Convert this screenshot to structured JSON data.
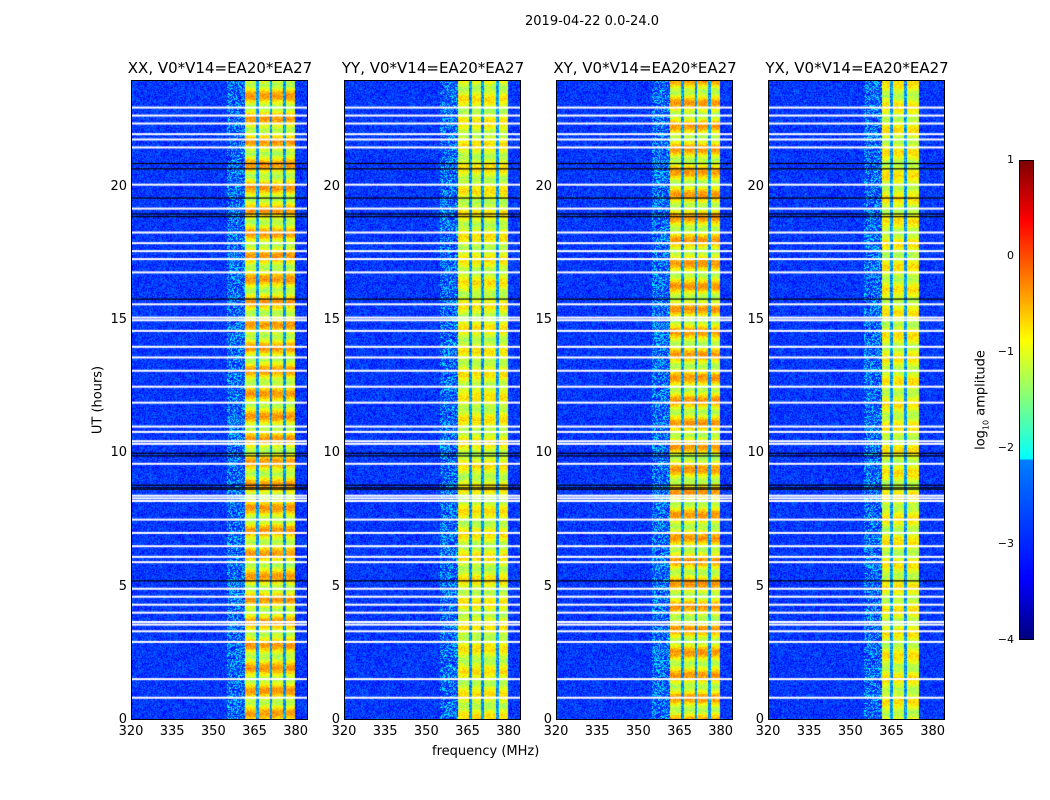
{
  "chart_data": {
    "type": "heatmap",
    "title": "2019-04-22 0.0-24.0",
    "xlabel": "frequency (MHz)",
    "ylabel": "UT (hours)",
    "xlim": [
      320,
      384.5
    ],
    "ylim": [
      0,
      24
    ],
    "xticks": [
      "320",
      "335",
      "350",
      "365",
      "380"
    ],
    "xtick_values": [
      320,
      335,
      350,
      365,
      380
    ],
    "yticks": [
      "0",
      "5",
      "10",
      "15",
      "20"
    ],
    "ytick_values": [
      0,
      5,
      10,
      15,
      20
    ],
    "panels": [
      {
        "title": "XX, V0*V14=EA20*EA27",
        "band": [
          361.5,
          380
        ],
        "dark_channels": [
          366,
          371,
          376
        ]
      },
      {
        "title": "YY, V0*V14=EA20*EA27",
        "band": [
          361.5,
          380
        ],
        "dark_channels": [
          366,
          370.5,
          376
        ]
      },
      {
        "title": "XY, V0*V14=EA20*EA27",
        "band": [
          361.5,
          380
        ],
        "dark_channels": [
          366,
          371,
          376
        ]
      },
      {
        "title": "YX, V0*V14=EA20*EA27",
        "band": [
          361.5,
          375
        ],
        "dark_channels": [
          365,
          370
        ]
      }
    ],
    "flagged_white_hours": [
      23.0,
      22.7,
      22.4,
      22.0,
      21.8,
      21.5,
      20.1,
      19.2,
      18.3,
      17.9,
      17.6,
      17.3,
      16.8,
      15.6,
      15.1,
      15.0,
      14.6,
      14.0,
      13.6,
      13.1,
      12.5,
      11.9,
      11.0,
      10.8,
      10.45,
      10.35,
      9.6,
      8.4,
      8.3,
      8.2,
      7.5,
      7.0,
      6.5,
      6.1,
      5.9,
      4.9,
      4.6,
      4.3,
      4.0,
      3.65,
      3.55,
      3.3,
      2.9,
      1.5,
      0.8
    ],
    "flagged_black_hours": [
      20.9,
      20.7,
      19.6,
      19.0,
      18.9,
      15.8,
      10.0,
      9.9,
      8.8,
      8.7,
      8.65,
      5.2
    ],
    "colorbar": {
      "label": "log10 amplitude",
      "label_main": "log",
      "label_sub": "10",
      "label_rest": " amplitude",
      "range": [
        -4,
        1
      ],
      "ticks": [
        "1",
        "0",
        "−1",
        "−2",
        "−3",
        "−4"
      ],
      "tick_values": [
        1,
        0,
        -1,
        -2,
        -3,
        -4
      ],
      "colormap": "jet"
    }
  }
}
